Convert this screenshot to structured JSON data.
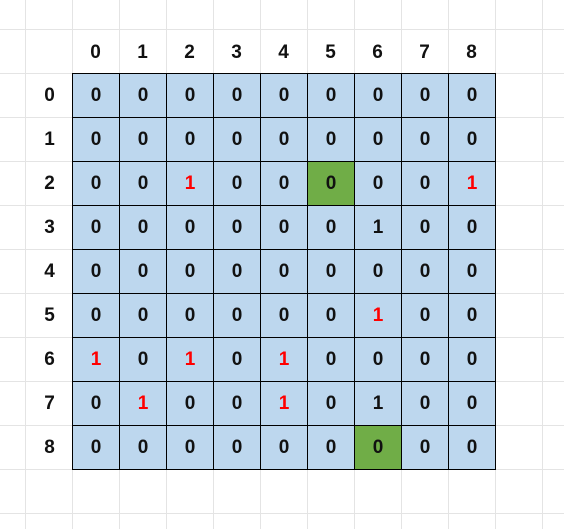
{
  "col_headers": [
    "0",
    "1",
    "2",
    "3",
    "4",
    "5",
    "6",
    "7",
    "8"
  ],
  "row_headers": [
    "0",
    "1",
    "2",
    "3",
    "4",
    "5",
    "6",
    "7",
    "8"
  ],
  "colors": {
    "cell_background": "#bdd7ee",
    "highlight_green": "#70ad47",
    "highlight_red_text": "#ff0000",
    "grid_line": "#000000"
  },
  "matrix": [
    [
      {
        "value": "0"
      },
      {
        "value": "0"
      },
      {
        "value": "0"
      },
      {
        "value": "0"
      },
      {
        "value": "0"
      },
      {
        "value": "0"
      },
      {
        "value": "0"
      },
      {
        "value": "0"
      },
      {
        "value": "0"
      }
    ],
    [
      {
        "value": "0"
      },
      {
        "value": "0"
      },
      {
        "value": "0"
      },
      {
        "value": "0"
      },
      {
        "value": "0"
      },
      {
        "value": "0"
      },
      {
        "value": "0"
      },
      {
        "value": "0"
      },
      {
        "value": "0"
      }
    ],
    [
      {
        "value": "0"
      },
      {
        "value": "0"
      },
      {
        "value": "1",
        "style": "red"
      },
      {
        "value": "0"
      },
      {
        "value": "0"
      },
      {
        "value": "0",
        "style": "green"
      },
      {
        "value": "0"
      },
      {
        "value": "0"
      },
      {
        "value": "1",
        "style": "red"
      }
    ],
    [
      {
        "value": "0"
      },
      {
        "value": "0"
      },
      {
        "value": "0"
      },
      {
        "value": "0"
      },
      {
        "value": "0"
      },
      {
        "value": "0"
      },
      {
        "value": "1"
      },
      {
        "value": "0"
      },
      {
        "value": "0"
      }
    ],
    [
      {
        "value": "0"
      },
      {
        "value": "0"
      },
      {
        "value": "0"
      },
      {
        "value": "0"
      },
      {
        "value": "0"
      },
      {
        "value": "0"
      },
      {
        "value": "0"
      },
      {
        "value": "0"
      },
      {
        "value": "0"
      }
    ],
    [
      {
        "value": "0"
      },
      {
        "value": "0"
      },
      {
        "value": "0"
      },
      {
        "value": "0"
      },
      {
        "value": "0"
      },
      {
        "value": "0"
      },
      {
        "value": "1",
        "style": "red"
      },
      {
        "value": "0"
      },
      {
        "value": "0"
      }
    ],
    [
      {
        "value": "1",
        "style": "red"
      },
      {
        "value": "0"
      },
      {
        "value": "1",
        "style": "red"
      },
      {
        "value": "0"
      },
      {
        "value": "1",
        "style": "red"
      },
      {
        "value": "0"
      },
      {
        "value": "0"
      },
      {
        "value": "0"
      },
      {
        "value": "0"
      }
    ],
    [
      {
        "value": "0"
      },
      {
        "value": "1",
        "style": "red"
      },
      {
        "value": "0"
      },
      {
        "value": "0"
      },
      {
        "value": "1",
        "style": "red"
      },
      {
        "value": "0"
      },
      {
        "value": "1"
      },
      {
        "value": "0"
      },
      {
        "value": "0"
      }
    ],
    [
      {
        "value": "0"
      },
      {
        "value": "0"
      },
      {
        "value": "0"
      },
      {
        "value": "0"
      },
      {
        "value": "0"
      },
      {
        "value": "0"
      },
      {
        "value": "0",
        "style": "green"
      },
      {
        "value": "0"
      },
      {
        "value": "0"
      }
    ]
  ]
}
